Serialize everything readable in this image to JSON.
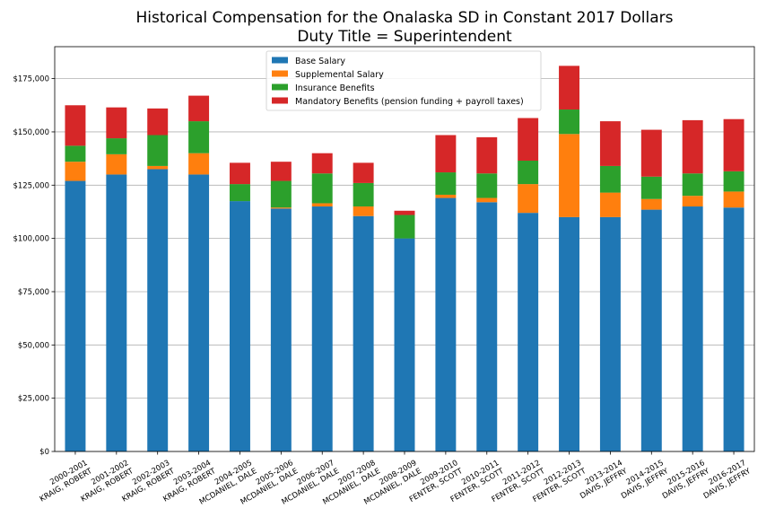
{
  "chart_data": {
    "type": "bar",
    "stacked": true,
    "title": "Historical Compensation for the Onalaska SD in Constant 2017 Dollars",
    "subtitle": "Duty Title = Superintendent",
    "xlabel": "",
    "ylabel": "",
    "ylim": [
      0,
      190000
    ],
    "yticks": [
      0,
      25000,
      50000,
      75000,
      100000,
      125000,
      150000,
      175000
    ],
    "ytick_labels": [
      "$0",
      "$25,000",
      "$50,000",
      "$75,000",
      "$100,000",
      "$125,000",
      "$150,000",
      "$175,000"
    ],
    "grid": "horizontal",
    "legend_position": "top-center",
    "categories": [
      [
        "2000-2001",
        "KRAIG, ROBERT"
      ],
      [
        "2001-2002",
        "KRAIG, ROBERT"
      ],
      [
        "2002-2003",
        "KRAIG, ROBERT"
      ],
      [
        "2003-2004",
        "KRAIG, ROBERT"
      ],
      [
        "2004-2005",
        "MCDANIEL, DALE"
      ],
      [
        "2005-2006",
        "MCDANIEL, DALE"
      ],
      [
        "2006-2007",
        "MCDANIEL, DALE"
      ],
      [
        "2007-2008",
        "MCDANIEL, DALE"
      ],
      [
        "2008-2009",
        "MCDANIEL, DALE"
      ],
      [
        "2009-2010",
        "FENTER, SCOTT"
      ],
      [
        "2010-2011",
        "FENTER, SCOTT"
      ],
      [
        "2011-2012",
        "FENTER, SCOTT"
      ],
      [
        "2012-2013",
        "FENTER, SCOTT"
      ],
      [
        "2013-2014",
        "DAVIS, JEFFRY"
      ],
      [
        "2014-2015",
        "DAVIS, JEFFRY"
      ],
      [
        "2015-2016",
        "DAVIS, JEFFRY"
      ],
      [
        "2016-2017",
        "DAVIS, JEFFRY"
      ]
    ],
    "series": [
      {
        "name": "Base Salary",
        "color": "#1f77b4",
        "values": [
          127000,
          130000,
          132500,
          130000,
          117500,
          114000,
          115000,
          110500,
          100000,
          119000,
          117000,
          112000,
          110000,
          110000,
          113500,
          115000,
          114500
        ]
      },
      {
        "name": "Supplemental Salary",
        "color": "#ff7f0e",
        "values": [
          9000,
          9500,
          1500,
          10000,
          0,
          500,
          1500,
          4500,
          0,
          1500,
          2000,
          13500,
          39000,
          11500,
          5000,
          5000,
          7500
        ]
      },
      {
        "name": "Insurance Benefits",
        "color": "#2ca02c",
        "values": [
          7500,
          7500,
          14500,
          15000,
          8000,
          12500,
          14000,
          11000,
          11000,
          10500,
          11500,
          11000,
          11500,
          12500,
          10500,
          10500,
          9500
        ]
      },
      {
        "name": "Mandatory Benefits (pension funding + payroll taxes)",
        "color": "#d62728",
        "values": [
          19000,
          14500,
          12500,
          12000,
          10000,
          9000,
          9500,
          9500,
          2000,
          17500,
          17000,
          20000,
          20500,
          21000,
          22000,
          25000,
          24500
        ]
      }
    ]
  }
}
